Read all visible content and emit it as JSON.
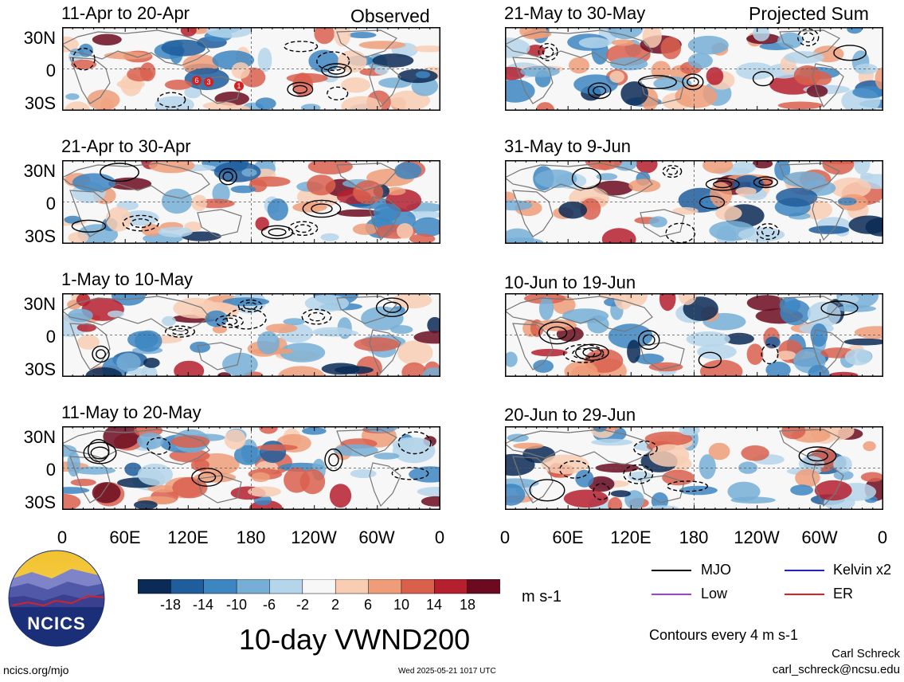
{
  "col_labels": {
    "left": "Observed",
    "right": "Projected Sum"
  },
  "left_panels": [
    {
      "title": "11-Apr to 20-Apr"
    },
    {
      "title": "21-Apr to 30-Apr"
    },
    {
      "title": "1-May to 10-May"
    },
    {
      "title": "11-May to 20-May"
    }
  ],
  "right_panels": [
    {
      "title": "21-May to 30-May"
    },
    {
      "title": "31-May to 9-Jun"
    },
    {
      "title": "10-Jun to 19-Jun"
    },
    {
      "title": "20-Jun to 29-Jun"
    }
  ],
  "y_ticks": [
    "30N",
    "0",
    "30S"
  ],
  "x_ticks": [
    "0",
    "60E",
    "120E",
    "180",
    "120W",
    "60W",
    "0"
  ],
  "colorbar": {
    "labels": [
      "-18",
      "-14",
      "-10",
      "-6",
      "-2",
      "2",
      "6",
      "10",
      "14",
      "18"
    ],
    "colors": [
      "#0b2a55",
      "#1f5d9d",
      "#3d86c2",
      "#76aed6",
      "#b5d5ea",
      "#f7f7f7",
      "#f8cdb4",
      "#ef9c79",
      "#d9604d",
      "#b51f2e",
      "#6b0a20"
    ],
    "units": "m s-1"
  },
  "legend": [
    {
      "label": "MJO",
      "color": "#000000"
    },
    {
      "label": "Kelvin x2",
      "color": "#1a1aff"
    },
    {
      "label": "Low",
      "color": "#a040e0"
    },
    {
      "label": "ER",
      "color": "#e02020"
    }
  ],
  "contour_note": "Contours every 4 m s-1",
  "main_title": "10-day VWND200",
  "logo_text": "NCICS",
  "footer_left": "ncics.org/mjo",
  "timestamp": "Wed 2025-05-21 1017 UTC",
  "author": "Carl Schreck",
  "email": "carl_schreck@ncsu.edu",
  "storm_markers": [
    "6",
    "3",
    "1"
  ]
}
